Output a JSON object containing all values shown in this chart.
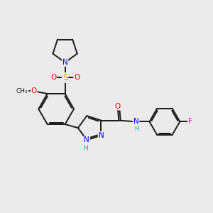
{
  "bg_color": "#ebebeb",
  "bond_color": "#1a1a1a",
  "bond_width": 1.4,
  "dbo": 0.055,
  "atom_colors": {
    "N": "#0000ff",
    "O": "#ff0000",
    "S": "#ccaa00",
    "F": "#ff00cc",
    "H_amide": "#00aaaa",
    "H_pyraz": "#00aaaa",
    "C": "#1a1a1a"
  },
  "font_size": 7.5,
  "font_size_h": 6.5,
  "xlim": [
    -3.8,
    4.8
  ],
  "ylim": [
    -3.2,
    3.6
  ]
}
